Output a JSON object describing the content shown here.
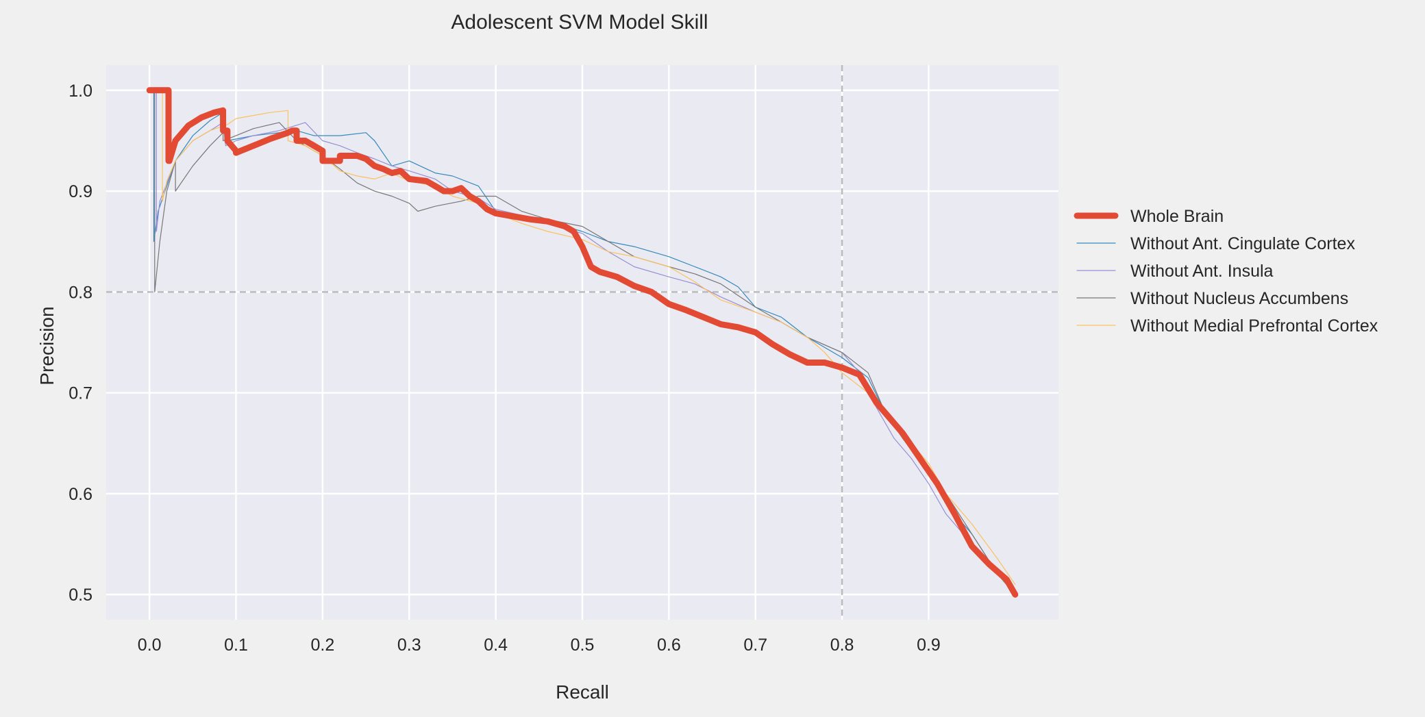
{
  "colors": {
    "figure_bg": "#f0f0f0",
    "axes_bg": "#eaeaf2",
    "grid": "#ffffff",
    "reference_line": "#bbbbbb",
    "text": "#262626"
  },
  "chart_data": {
    "type": "line",
    "title": "Adolescent SVM Model Skill",
    "xlabel": "Recall",
    "ylabel": "Precision",
    "xlim": [
      -0.05,
      1.05
    ],
    "ylim": [
      0.475,
      1.025
    ],
    "xticks": [
      0.0,
      0.1,
      0.2,
      0.3,
      0.4,
      0.5,
      0.6,
      0.7,
      0.8,
      0.9
    ],
    "xtick_labels": [
      "0.0",
      "0.1",
      "0.2",
      "0.3",
      "0.4",
      "0.5",
      "0.6",
      "0.7",
      "0.8",
      "0.9"
    ],
    "yticks": [
      0.5,
      0.6,
      0.7,
      0.8,
      0.9,
      1.0
    ],
    "ytick_labels": [
      "0.5",
      "0.6",
      "0.7",
      "0.8",
      "0.9",
      "1.0"
    ],
    "grid": true,
    "legend_position": "right",
    "reference_lines": {
      "x": 0.8,
      "y": 0.8
    },
    "series": [
      {
        "name": "Whole Brain",
        "color": "#e24a33",
        "width": 9,
        "x": [
          0.0,
          0.022,
          0.022,
          0.023,
          0.03,
          0.045,
          0.06,
          0.075,
          0.085,
          0.085,
          0.09,
          0.09,
          0.1,
          0.1,
          0.12,
          0.14,
          0.16,
          0.165,
          0.17,
          0.17,
          0.18,
          0.19,
          0.2,
          0.2,
          0.22,
          0.22,
          0.24,
          0.25,
          0.26,
          0.27,
          0.28,
          0.29,
          0.3,
          0.32,
          0.33,
          0.34,
          0.35,
          0.36,
          0.37,
          0.38,
          0.39,
          0.4,
          0.42,
          0.44,
          0.46,
          0.48,
          0.49,
          0.5,
          0.51,
          0.52,
          0.54,
          0.56,
          0.58,
          0.6,
          0.62,
          0.64,
          0.66,
          0.68,
          0.7,
          0.72,
          0.74,
          0.76,
          0.78,
          0.8,
          0.82,
          0.84,
          0.85,
          0.87,
          0.89,
          0.91,
          0.93,
          0.95,
          0.97,
          0.99,
          1.0
        ],
        "y": [
          1.0,
          1.0,
          0.93,
          0.93,
          0.95,
          0.965,
          0.973,
          0.978,
          0.98,
          0.96,
          0.96,
          0.95,
          0.94,
          0.938,
          0.945,
          0.952,
          0.958,
          0.96,
          0.96,
          0.95,
          0.95,
          0.945,
          0.94,
          0.93,
          0.93,
          0.935,
          0.935,
          0.932,
          0.925,
          0.922,
          0.918,
          0.92,
          0.912,
          0.91,
          0.905,
          0.9,
          0.9,
          0.903,
          0.895,
          0.89,
          0.882,
          0.878,
          0.875,
          0.872,
          0.87,
          0.865,
          0.86,
          0.845,
          0.825,
          0.82,
          0.815,
          0.806,
          0.8,
          0.788,
          0.782,
          0.775,
          0.768,
          0.765,
          0.76,
          0.748,
          0.738,
          0.73,
          0.73,
          0.725,
          0.718,
          0.69,
          0.68,
          0.66,
          0.635,
          0.61,
          0.58,
          0.548,
          0.53,
          0.515,
          0.5
        ]
      },
      {
        "name": "Without Ant. Cingulate Cortex",
        "color": "#348abd",
        "width": 1.2,
        "x": [
          0.0,
          0.005,
          0.005,
          0.01,
          0.03,
          0.05,
          0.07,
          0.085,
          0.09,
          0.12,
          0.15,
          0.17,
          0.19,
          0.22,
          0.25,
          0.26,
          0.28,
          0.3,
          0.33,
          0.35,
          0.38,
          0.4,
          0.43,
          0.46,
          0.5,
          0.53,
          0.56,
          0.6,
          0.63,
          0.66,
          0.68,
          0.7,
          0.73,
          0.76,
          0.8,
          0.83,
          0.85,
          0.87,
          0.9,
          0.92,
          0.95,
          0.98,
          1.0
        ],
        "y": [
          1.0,
          1.0,
          0.85,
          0.88,
          0.93,
          0.955,
          0.97,
          0.978,
          0.95,
          0.955,
          0.958,
          0.96,
          0.955,
          0.955,
          0.958,
          0.95,
          0.925,
          0.93,
          0.918,
          0.915,
          0.905,
          0.88,
          0.875,
          0.87,
          0.86,
          0.85,
          0.845,
          0.835,
          0.825,
          0.815,
          0.805,
          0.785,
          0.775,
          0.755,
          0.735,
          0.715,
          0.68,
          0.655,
          0.62,
          0.59,
          0.56,
          0.52,
          0.5
        ]
      },
      {
        "name": "Without Ant. Insula",
        "color": "#988ed5",
        "width": 1.2,
        "x": [
          0.0,
          0.008,
          0.008,
          0.012,
          0.03,
          0.05,
          0.07,
          0.085,
          0.088,
          0.1,
          0.12,
          0.15,
          0.18,
          0.2,
          0.22,
          0.24,
          0.26,
          0.28,
          0.3,
          0.33,
          0.35,
          0.38,
          0.4,
          0.43,
          0.46,
          0.5,
          0.53,
          0.56,
          0.6,
          0.63,
          0.66,
          0.7,
          0.73,
          0.76,
          0.8,
          0.82,
          0.84,
          0.86,
          0.88,
          0.9,
          0.92,
          0.94,
          0.96,
          0.98,
          1.0
        ],
        "y": [
          1.0,
          1.0,
          0.86,
          0.89,
          0.93,
          0.95,
          0.96,
          0.968,
          0.945,
          0.95,
          0.955,
          0.96,
          0.968,
          0.95,
          0.945,
          0.938,
          0.932,
          0.925,
          0.92,
          0.912,
          0.9,
          0.893,
          0.882,
          0.876,
          0.868,
          0.858,
          0.84,
          0.825,
          0.815,
          0.808,
          0.795,
          0.78,
          0.77,
          0.755,
          0.74,
          0.72,
          0.685,
          0.655,
          0.635,
          0.61,
          0.58,
          0.56,
          0.54,
          0.52,
          0.5
        ]
      },
      {
        "name": "Without Nucleus Accumbens",
        "color": "#777777",
        "width": 1.2,
        "x": [
          0.0,
          0.006,
          0.006,
          0.012,
          0.02,
          0.03,
          0.03,
          0.05,
          0.07,
          0.085,
          0.085,
          0.1,
          0.12,
          0.15,
          0.17,
          0.2,
          0.22,
          0.24,
          0.26,
          0.28,
          0.3,
          0.31,
          0.33,
          0.36,
          0.38,
          0.4,
          0.43,
          0.46,
          0.5,
          0.53,
          0.56,
          0.6,
          0.63,
          0.66,
          0.7,
          0.73,
          0.76,
          0.8,
          0.83,
          0.85,
          0.87,
          0.9,
          0.92,
          0.95,
          0.98,
          1.0
        ],
        "y": [
          1.0,
          1.0,
          0.8,
          0.85,
          0.9,
          0.93,
          0.9,
          0.925,
          0.945,
          0.958,
          0.95,
          0.955,
          0.962,
          0.968,
          0.95,
          0.935,
          0.922,
          0.908,
          0.9,
          0.895,
          0.888,
          0.88,
          0.885,
          0.89,
          0.895,
          0.895,
          0.88,
          0.872,
          0.865,
          0.85,
          0.835,
          0.825,
          0.818,
          0.808,
          0.785,
          0.77,
          0.755,
          0.74,
          0.72,
          0.68,
          0.655,
          0.62,
          0.6,
          0.56,
          0.52,
          0.5
        ]
      },
      {
        "name": "Without Medial Prefrontal Cortex",
        "color": "#fbc15e",
        "width": 1.2,
        "x": [
          0.0,
          0.015,
          0.015,
          0.02,
          0.03,
          0.05,
          0.07,
          0.09,
          0.1,
          0.12,
          0.14,
          0.16,
          0.16,
          0.18,
          0.2,
          0.22,
          0.24,
          0.26,
          0.28,
          0.3,
          0.33,
          0.35,
          0.38,
          0.4,
          0.43,
          0.46,
          0.5,
          0.53,
          0.56,
          0.6,
          0.63,
          0.66,
          0.7,
          0.73,
          0.76,
          0.78,
          0.8,
          0.83,
          0.85,
          0.87,
          0.9,
          0.92,
          0.95,
          0.98,
          1.0
        ],
        "y": [
          1.0,
          1.0,
          0.89,
          0.91,
          0.93,
          0.95,
          0.96,
          0.966,
          0.972,
          0.975,
          0.978,
          0.98,
          0.95,
          0.945,
          0.935,
          0.92,
          0.915,
          0.912,
          0.918,
          0.91,
          0.905,
          0.895,
          0.888,
          0.878,
          0.868,
          0.86,
          0.852,
          0.84,
          0.835,
          0.825,
          0.81,
          0.792,
          0.78,
          0.77,
          0.755,
          0.74,
          0.72,
          0.7,
          0.68,
          0.66,
          0.63,
          0.6,
          0.57,
          0.535,
          0.51
        ]
      }
    ]
  }
}
